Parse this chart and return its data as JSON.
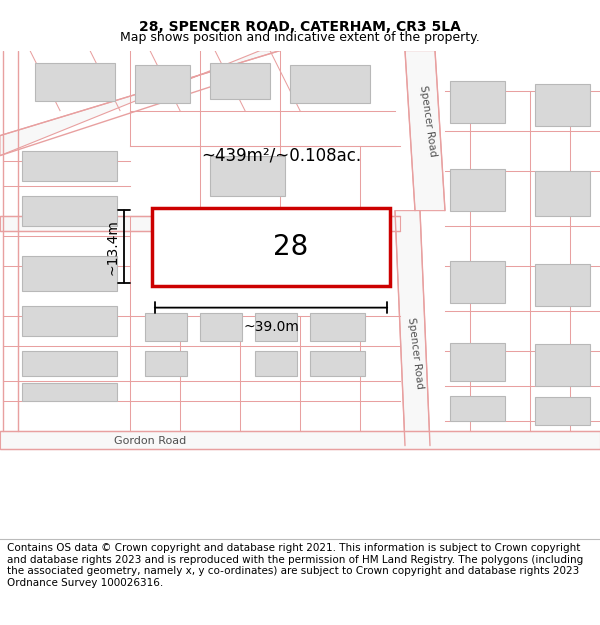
{
  "title": "28, SPENCER ROAD, CATERHAM, CR3 5LA",
  "subtitle": "Map shows position and indicative extent of the property.",
  "footer": "Contains OS data © Crown copyright and database right 2021. This information is subject to Crown copyright and database rights 2023 and is reproduced with the permission of HM Land Registry. The polygons (including the associated geometry, namely x, y co-ordinates) are subject to Crown copyright and database rights 2023 Ordnance Survey 100026316.",
  "map_bg": "#ffffff",
  "road_line_color": "#e8a0a0",
  "road_fill_color": "#f5f5f5",
  "building_fill": "#d8d8d8",
  "building_edge": "#c0c0c0",
  "highlight_color": "#cc0000",
  "highlight_fill": "#ffffff",
  "measure_color": "#111111",
  "label_28": "28",
  "area_label": "~439m²/~0.108ac.",
  "width_label": "~39.0m",
  "height_label": "~13.4m",
  "road_label_1": "Spencer Road",
  "road_label_2": "Spencer Road",
  "road_label_3": "Gordon Road",
  "title_fontsize": 10,
  "subtitle_fontsize": 9,
  "footer_fontsize": 7.5
}
